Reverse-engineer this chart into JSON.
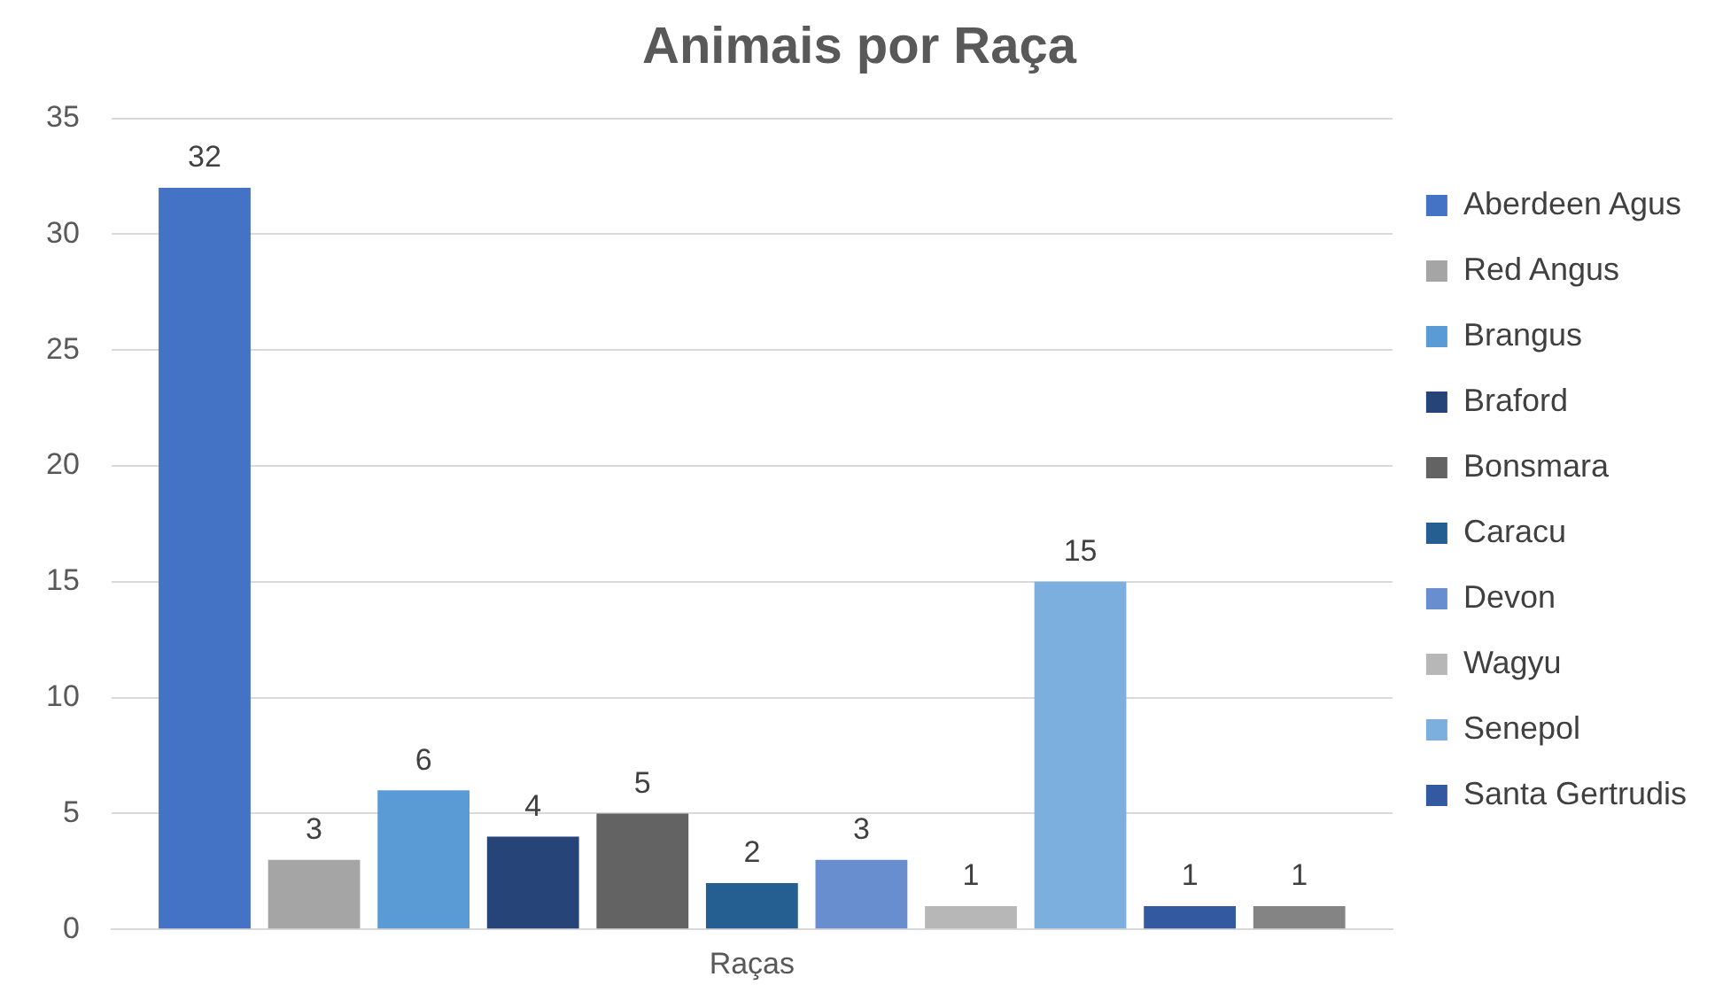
{
  "chart_data": {
    "type": "bar",
    "title": "Animais por Raça",
    "categories": [
      "Raças"
    ],
    "series": [
      {
        "name": "Aberdeen Agus",
        "color": "#4472c4",
        "values": [
          32
        ]
      },
      {
        "name": "Red Angus",
        "color": "#a5a5a5",
        "values": [
          3
        ]
      },
      {
        "name": "Brangus",
        "color": "#5b9bd5",
        "values": [
          6
        ]
      },
      {
        "name": "Braford",
        "color": "#264478",
        "values": [
          4
        ]
      },
      {
        "name": "Bonsmara",
        "color": "#636363",
        "values": [
          5
        ]
      },
      {
        "name": "Caracu",
        "color": "#255e91",
        "values": [
          2
        ]
      },
      {
        "name": "Devon",
        "color": "#698ed0",
        "values": [
          3
        ]
      },
      {
        "name": "Wagyu",
        "color": "#b7b7b7",
        "values": [
          1
        ]
      },
      {
        "name": "Senepol",
        "color": "#7cafdd",
        "values": [
          15
        ]
      },
      {
        "name": "Santa Gertrudis",
        "color": "#335aa1",
        "values": [
          1
        ]
      },
      {
        "color": "#848484",
        "values": [
          1
        ]
      }
    ],
    "ylim": [
      0,
      35
    ],
    "yticks": [
      0,
      5,
      10,
      15,
      20,
      25,
      30,
      35
    ],
    "grid": "y",
    "legend": "right",
    "data_labels": true
  }
}
